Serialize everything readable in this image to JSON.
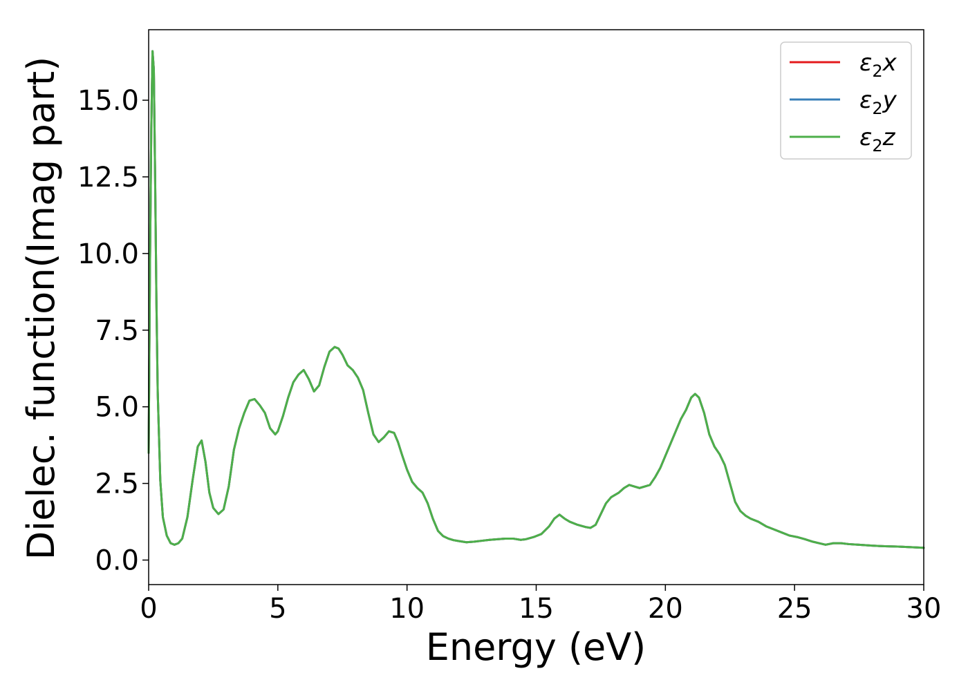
{
  "chart_data": {
    "type": "line",
    "title": "",
    "xlabel": "Energy (eV)",
    "ylabel": "Dielec. function(Imag part)",
    "xlim": [
      0,
      30
    ],
    "ylim": [
      -0.8,
      17.3
    ],
    "xticks": [
      0,
      5,
      10,
      15,
      20,
      25,
      30
    ],
    "yticks": [
      0.0,
      2.5,
      5.0,
      7.5,
      10.0,
      12.5,
      15.0
    ],
    "xtick_labels": [
      "0",
      "5",
      "10",
      "15",
      "20",
      "25",
      "30"
    ],
    "ytick_labels": [
      "0.0",
      "2.5",
      "5.0",
      "7.5",
      "10.0",
      "12.5",
      "15.0"
    ],
    "grid": false,
    "legend_position": "top-right",
    "x": [
      0,
      0.05,
      0.1,
      0.15,
      0.2,
      0.25,
      0.3,
      0.35,
      0.45,
      0.55,
      0.7,
      0.85,
      1.0,
      1.15,
      1.3,
      1.5,
      1.7,
      1.9,
      2.05,
      2.2,
      2.35,
      2.5,
      2.7,
      2.9,
      3.1,
      3.3,
      3.5,
      3.7,
      3.9,
      4.1,
      4.3,
      4.5,
      4.7,
      4.9,
      5.0,
      5.2,
      5.4,
      5.6,
      5.8,
      6.0,
      6.2,
      6.4,
      6.6,
      6.8,
      7.0,
      7.2,
      7.35,
      7.5,
      7.7,
      7.9,
      8.1,
      8.3,
      8.5,
      8.7,
      8.9,
      9.1,
      9.3,
      9.5,
      9.65,
      9.8,
      10.0,
      10.2,
      10.4,
      10.6,
      10.8,
      11.0,
      11.2,
      11.4,
      11.6,
      11.8,
      12.0,
      12.3,
      12.6,
      12.9,
      13.2,
      13.5,
      13.8,
      14.1,
      14.4,
      14.6,
      14.9,
      15.2,
      15.5,
      15.7,
      15.9,
      16.1,
      16.3,
      16.6,
      16.9,
      17.1,
      17.3,
      17.5,
      17.7,
      17.9,
      18.2,
      18.4,
      18.6,
      18.8,
      19.0,
      19.2,
      19.4,
      19.6,
      19.8,
      20.0,
      20.2,
      20.4,
      20.6,
      20.8,
      21.0,
      21.15,
      21.3,
      21.5,
      21.7,
      21.9,
      22.1,
      22.3,
      22.5,
      22.7,
      22.9,
      23.1,
      23.3,
      23.6,
      23.9,
      24.2,
      24.5,
      24.8,
      25.1,
      25.4,
      25.7,
      26.0,
      26.2,
      26.5,
      26.8,
      27.1,
      27.5,
      28.0,
      28.5,
      29.0,
      29.5,
      30.0
    ],
    "series": [
      {
        "name": "ε₂x",
        "color": "#e41a1c",
        "values": [
          3.5,
          9.5,
          14.0,
          16.6,
          16.0,
          12.5,
          8.5,
          5.5,
          2.6,
          1.4,
          0.8,
          0.55,
          0.5,
          0.55,
          0.7,
          1.4,
          2.6,
          3.7,
          3.9,
          3.2,
          2.2,
          1.7,
          1.5,
          1.65,
          2.4,
          3.6,
          4.3,
          4.8,
          5.2,
          5.25,
          5.05,
          4.8,
          4.3,
          4.1,
          4.2,
          4.7,
          5.3,
          5.8,
          6.05,
          6.2,
          5.9,
          5.5,
          5.7,
          6.3,
          6.8,
          6.95,
          6.9,
          6.7,
          6.35,
          6.2,
          5.95,
          5.55,
          4.8,
          4.1,
          3.85,
          4.0,
          4.2,
          4.15,
          3.85,
          3.45,
          2.95,
          2.55,
          2.35,
          2.2,
          1.85,
          1.35,
          0.95,
          0.78,
          0.7,
          0.65,
          0.62,
          0.58,
          0.6,
          0.63,
          0.66,
          0.68,
          0.7,
          0.7,
          0.66,
          0.68,
          0.75,
          0.85,
          1.1,
          1.35,
          1.48,
          1.35,
          1.25,
          1.15,
          1.08,
          1.05,
          1.15,
          1.5,
          1.85,
          2.05,
          2.2,
          2.35,
          2.45,
          2.4,
          2.35,
          2.4,
          2.45,
          2.7,
          3.0,
          3.4,
          3.8,
          4.2,
          4.6,
          4.9,
          5.3,
          5.42,
          5.3,
          4.8,
          4.1,
          3.7,
          3.45,
          3.1,
          2.5,
          1.9,
          1.6,
          1.45,
          1.35,
          1.25,
          1.1,
          1.0,
          0.9,
          0.8,
          0.75,
          0.68,
          0.6,
          0.54,
          0.5,
          0.55,
          0.55,
          0.52,
          0.5,
          0.47,
          0.45,
          0.44,
          0.42,
          0.4
        ]
      },
      {
        "name": "ε₂y",
        "color": "#377eb8",
        "values": [
          3.5,
          9.5,
          14.0,
          16.6,
          16.0,
          12.5,
          8.5,
          5.5,
          2.6,
          1.4,
          0.8,
          0.55,
          0.5,
          0.55,
          0.7,
          1.4,
          2.6,
          3.7,
          3.9,
          3.2,
          2.2,
          1.7,
          1.5,
          1.65,
          2.4,
          3.6,
          4.3,
          4.8,
          5.2,
          5.25,
          5.05,
          4.8,
          4.3,
          4.1,
          4.2,
          4.7,
          5.3,
          5.8,
          6.05,
          6.2,
          5.9,
          5.5,
          5.7,
          6.3,
          6.8,
          6.95,
          6.9,
          6.7,
          6.35,
          6.2,
          5.95,
          5.55,
          4.8,
          4.1,
          3.85,
          4.0,
          4.2,
          4.15,
          3.85,
          3.45,
          2.95,
          2.55,
          2.35,
          2.2,
          1.85,
          1.35,
          0.95,
          0.78,
          0.7,
          0.65,
          0.62,
          0.58,
          0.6,
          0.63,
          0.66,
          0.68,
          0.7,
          0.7,
          0.66,
          0.68,
          0.75,
          0.85,
          1.1,
          1.35,
          1.48,
          1.35,
          1.25,
          1.15,
          1.08,
          1.05,
          1.15,
          1.5,
          1.85,
          2.05,
          2.2,
          2.35,
          2.45,
          2.4,
          2.35,
          2.4,
          2.45,
          2.7,
          3.0,
          3.4,
          3.8,
          4.2,
          4.6,
          4.9,
          5.3,
          5.42,
          5.3,
          4.8,
          4.1,
          3.7,
          3.45,
          3.1,
          2.5,
          1.9,
          1.6,
          1.45,
          1.35,
          1.25,
          1.1,
          1.0,
          0.9,
          0.8,
          0.75,
          0.68,
          0.6,
          0.54,
          0.5,
          0.55,
          0.55,
          0.52,
          0.5,
          0.47,
          0.45,
          0.44,
          0.42,
          0.4
        ]
      },
      {
        "name": "ε₂z",
        "color": "#4daf4a",
        "values": [
          3.5,
          9.5,
          14.0,
          16.6,
          16.0,
          12.5,
          8.5,
          5.5,
          2.6,
          1.4,
          0.8,
          0.55,
          0.5,
          0.55,
          0.7,
          1.4,
          2.6,
          3.7,
          3.9,
          3.2,
          2.2,
          1.7,
          1.5,
          1.65,
          2.4,
          3.6,
          4.3,
          4.8,
          5.2,
          5.25,
          5.05,
          4.8,
          4.3,
          4.1,
          4.2,
          4.7,
          5.3,
          5.8,
          6.05,
          6.2,
          5.9,
          5.5,
          5.7,
          6.3,
          6.8,
          6.95,
          6.9,
          6.7,
          6.35,
          6.2,
          5.95,
          5.55,
          4.8,
          4.1,
          3.85,
          4.0,
          4.2,
          4.15,
          3.85,
          3.45,
          2.95,
          2.55,
          2.35,
          2.2,
          1.85,
          1.35,
          0.95,
          0.78,
          0.7,
          0.65,
          0.62,
          0.58,
          0.6,
          0.63,
          0.66,
          0.68,
          0.7,
          0.7,
          0.66,
          0.68,
          0.75,
          0.85,
          1.1,
          1.35,
          1.48,
          1.35,
          1.25,
          1.15,
          1.08,
          1.05,
          1.15,
          1.5,
          1.85,
          2.05,
          2.2,
          2.35,
          2.45,
          2.4,
          2.35,
          2.4,
          2.45,
          2.7,
          3.0,
          3.4,
          3.8,
          4.2,
          4.6,
          4.9,
          5.3,
          5.42,
          5.3,
          4.8,
          4.1,
          3.7,
          3.45,
          3.1,
          2.5,
          1.9,
          1.6,
          1.45,
          1.35,
          1.25,
          1.1,
          1.0,
          0.9,
          0.8,
          0.75,
          0.68,
          0.6,
          0.54,
          0.5,
          0.55,
          0.55,
          0.52,
          0.5,
          0.47,
          0.45,
          0.44,
          0.42,
          0.4
        ]
      }
    ],
    "legend": {
      "entries": [
        {
          "base": "ε",
          "sub": "2",
          "axis": "x",
          "color": "#e41a1c"
        },
        {
          "base": "ε",
          "sub": "2",
          "axis": "y",
          "color": "#377eb8"
        },
        {
          "base": "ε",
          "sub": "2",
          "axis": "z",
          "color": "#4daf4a"
        }
      ]
    }
  }
}
